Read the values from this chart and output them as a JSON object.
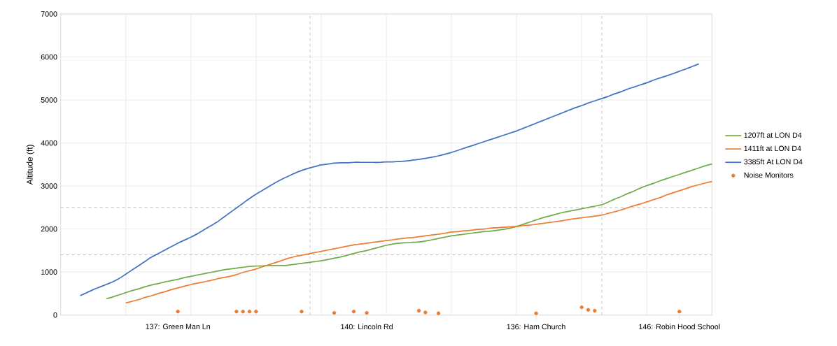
{
  "chart_data": {
    "type": "line",
    "ylabel": "Altitude (ft)",
    "categories": [
      null,
      null,
      null,
      null,
      null,
      null,
      null,
      null,
      null,
      null,
      null,
      null,
      null,
      null,
      null,
      null,
      null,
      null,
      "137: Green Man Ln",
      null,
      null,
      null,
      null,
      null,
      null,
      null,
      null,
      null,
      null,
      null,
      null,
      null,
      null,
      null,
      null,
      null,
      null,
      null,
      null,
      null,
      null,
      null,
      null,
      null,
      null,
      null,
      null,
      "140: Lincoln Rd",
      null,
      null,
      null,
      null,
      null,
      null,
      null,
      null,
      null,
      null,
      null,
      null,
      null,
      null,
      null,
      null,
      null,
      null,
      null,
      null,
      null,
      null,
      null,
      null,
      null,
      "136: Ham Church",
      null,
      null,
      null,
      null,
      null,
      null,
      null,
      null,
      null,
      null,
      null,
      null,
      null,
      null,
      null,
      null,
      null,
      null,
      null,
      null,
      null,
      "146: Robin Hood School",
      null,
      null,
      null,
      null,
      null
    ],
    "ylim": [
      0,
      7000
    ],
    "yticks": [
      0,
      1000,
      2000,
      3000,
      4000,
      5000,
      6000,
      7000
    ],
    "grid": true,
    "legend": "right",
    "ref_lines": [
      {
        "axis": "y",
        "value": 2500,
        "color": "#b0b0b0",
        "line_style": "dashed"
      },
      {
        "axis": "y",
        "value": 1400,
        "color": "#b0b0b0",
        "line_style": "dashed"
      }
    ],
    "series": [
      {
        "name": "1207ft at LON D4",
        "color": "#70ad47",
        "values": [
          null,
          null,
          null,
          null,
          null,
          null,
          null,
          380,
          420,
          470,
          520,
          570,
          610,
          660,
          700,
          730,
          770,
          800,
          830,
          870,
          900,
          930,
          960,
          990,
          1020,
          1050,
          1070,
          1090,
          1110,
          1130,
          1140,
          1140,
          1150,
          1150,
          1150,
          1160,
          1180,
          1200,
          1220,
          1240,
          1260,
          1290,
          1320,
          1350,
          1390,
          1430,
          1470,
          1500,
          1540,
          1580,
          1620,
          1650,
          1670,
          1680,
          1690,
          1700,
          1720,
          1750,
          1780,
          1810,
          1840,
          1860,
          1880,
          1900,
          1920,
          1940,
          1950,
          1970,
          1990,
          2020,
          2060,
          2110,
          2160,
          2210,
          2260,
          2300,
          2340,
          2380,
          2410,
          2440,
          2470,
          2500,
          2530,
          2560,
          2620,
          2690,
          2750,
          2820,
          2880,
          2950,
          3010,
          3060,
          3120,
          3170,
          3220,
          3270,
          3320,
          3370,
          3420,
          3470,
          3510
        ]
      },
      {
        "name": "1411ft at LON D4",
        "color": "#ed7d31",
        "values": [
          null,
          null,
          null,
          null,
          null,
          null,
          null,
          null,
          null,
          null,
          280,
          320,
          360,
          410,
          450,
          500,
          540,
          590,
          630,
          670,
          710,
          740,
          770,
          800,
          840,
          870,
          900,
          940,
          990,
          1030,
          1070,
          1120,
          1170,
          1220,
          1270,
          1320,
          1360,
          1390,
          1420,
          1450,
          1480,
          1510,
          1540,
          1570,
          1600,
          1630,
          1650,
          1670,
          1690,
          1710,
          1730,
          1750,
          1770,
          1790,
          1800,
          1820,
          1840,
          1860,
          1880,
          1900,
          1930,
          1940,
          1960,
          1970,
          1990,
          2000,
          2020,
          2030,
          2040,
          2050,
          2060,
          2080,
          2090,
          2110,
          2130,
          2150,
          2170,
          2190,
          2220,
          2240,
          2260,
          2280,
          2300,
          2320,
          2360,
          2400,
          2440,
          2490,
          2540,
          2580,
          2630,
          2680,
          2730,
          2790,
          2840,
          2890,
          2940,
          2990,
          3030,
          3070,
          3100
        ]
      },
      {
        "name": "3385ft At LON D4",
        "color": "#4472c4",
        "values": [
          null,
          null,
          null,
          450,
          520,
          590,
          650,
          710,
          770,
          850,
          950,
          1050,
          1150,
          1250,
          1350,
          1430,
          1510,
          1590,
          1670,
          1740,
          1810,
          1890,
          1980,
          2070,
          2160,
          2270,
          2380,
          2490,
          2600,
          2710,
          2810,
          2900,
          2990,
          3080,
          3160,
          3230,
          3300,
          3360,
          3410,
          3450,
          3490,
          3510,
          3530,
          3540,
          3540,
          3550,
          3550,
          3550,
          3550,
          3550,
          3560,
          3560,
          3570,
          3580,
          3600,
          3620,
          3640,
          3670,
          3700,
          3740,
          3780,
          3830,
          3880,
          3930,
          3980,
          4030,
          4080,
          4130,
          4180,
          4230,
          4280,
          4340,
          4400,
          4460,
          4520,
          4580,
          4640,
          4700,
          4760,
          4820,
          4870,
          4930,
          4980,
          5030,
          5080,
          5140,
          5190,
          5250,
          5300,
          5350,
          5400,
          5460,
          5510,
          5560,
          5610,
          5670,
          5720,
          5780,
          5840,
          null,
          null
        ]
      },
      {
        "name": "Noise Monitors",
        "type": "scatter",
        "marker": "circle",
        "color": "#ed7d31",
        "values": [
          null,
          null,
          null,
          null,
          null,
          null,
          null,
          null,
          null,
          null,
          null,
          null,
          null,
          null,
          null,
          null,
          null,
          null,
          80,
          null,
          null,
          null,
          null,
          null,
          null,
          null,
          null,
          80,
          80,
          null,
          80,
          null,
          null,
          null,
          null,
          null,
          null,
          80,
          null,
          null,
          null,
          null,
          50,
          null,
          null,
          80,
          null,
          50,
          null,
          null,
          null,
          null,
          null,
          null,
          null,
          100,
          60,
          null,
          40,
          null,
          null,
          null,
          null,
          null,
          null,
          null,
          null,
          null,
          null,
          null,
          null,
          null,
          null,
          40,
          null,
          null,
          null,
          null,
          null,
          null,
          180,
          null,
          100,
          null,
          null,
          null,
          null,
          null,
          null,
          null,
          null,
          null,
          null,
          null,
          null,
          80,
          null,
          null,
          null,
          null,
          null
        ]
      },
      {
        "type": "scatter",
        "marker": "circle",
        "color": "#ed7d31",
        "values": [
          null,
          null,
          null,
          null,
          null,
          null,
          null,
          null,
          null,
          null,
          null,
          null,
          null,
          null,
          null,
          null,
          null,
          null,
          null,
          null,
          null,
          null,
          null,
          null,
          null,
          null,
          null,
          null,
          null,
          80,
          null,
          null,
          null,
          null,
          null,
          null,
          null,
          null,
          null,
          null,
          null,
          null,
          null,
          null,
          null,
          null,
          null,
          null,
          null,
          null,
          null,
          null,
          null,
          null,
          null,
          null,
          null,
          null,
          null,
          null,
          null,
          null,
          null,
          null,
          null,
          null,
          null,
          null,
          null,
          null,
          null,
          null,
          null,
          null,
          null,
          null,
          null,
          null,
          null,
          null,
          null,
          120,
          null,
          null,
          null,
          null,
          null,
          null,
          null,
          null,
          null,
          null,
          null,
          null,
          null,
          null,
          null,
          null,
          null,
          null,
          null
        ]
      }
    ]
  }
}
